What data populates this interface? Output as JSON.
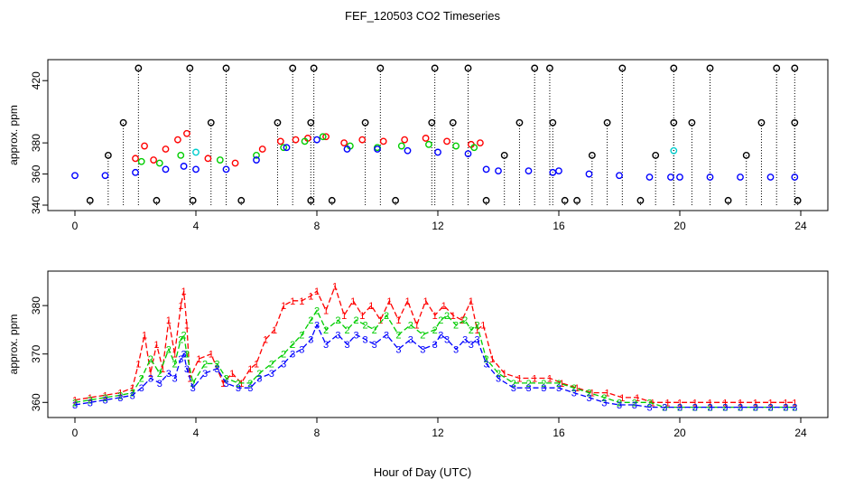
{
  "title": "FEF_120503  CO2 Timeseries",
  "xlabel": "Hour of Day (UTC)",
  "chart_data": [
    {
      "type": "scatter",
      "name": "top-panel",
      "ylabel": "approx. ppm",
      "xlim": [
        0,
        24
      ],
      "ylim": [
        340,
        430
      ],
      "xticks": [
        0,
        4,
        8,
        12,
        16,
        20,
        24
      ],
      "yticks": [
        340,
        360,
        380,
        420
      ],
      "series": [
        {
          "name": "black-spikes",
          "color": "#000000",
          "x": [
            0.5,
            1.1,
            1.6,
            2.1,
            2.7,
            3.8,
            3.9,
            4.5,
            5.0,
            5.5,
            6.7,
            7.2,
            7.8,
            7.8,
            7.9,
            8.5,
            9.6,
            10.1,
            10.6,
            11.8,
            11.9,
            12.5,
            13.0,
            13.6,
            14.2,
            14.7,
            15.2,
            15.7,
            15.8,
            16.2,
            16.6,
            17.1,
            17.6,
            18.1,
            18.7,
            19.2,
            19.8,
            19.8,
            20.4,
            21.0,
            21.6,
            22.2,
            22.7,
            23.2,
            23.8,
            23.8,
            23.9
          ],
          "y": [
            343,
            372,
            393,
            428,
            343,
            428,
            343,
            393,
            428,
            343,
            393,
            428,
            393,
            343,
            428,
            343,
            393,
            428,
            343,
            393,
            428,
            393,
            428,
            343,
            372,
            393,
            428,
            428,
            393,
            343,
            343,
            372,
            393,
            428,
            343,
            372,
            428,
            393,
            393,
            428,
            343,
            372,
            393,
            428,
            428,
            393,
            343
          ]
        },
        {
          "name": "red",
          "color": "#ff0000",
          "x": [
            2.0,
            2.3,
            2.6,
            3.0,
            3.4,
            3.7,
            4.4,
            5.3,
            6.2,
            6.8,
            7.3,
            7.7,
            8.3,
            8.9,
            9.5,
            10.2,
            10.9,
            11.6,
            12.3,
            13.1,
            13.4
          ],
          "y": [
            370,
            378,
            369,
            376,
            382,
            386,
            370,
            367,
            376,
            381,
            382,
            383,
            384,
            380,
            382,
            381,
            382,
            383,
            381,
            379,
            380
          ]
        },
        {
          "name": "green",
          "color": "#00cd00",
          "x": [
            2.2,
            2.8,
            3.5,
            4.8,
            6.0,
            6.9,
            7.6,
            8.2,
            9.1,
            10.0,
            10.8,
            11.7,
            12.6,
            13.2
          ],
          "y": [
            368,
            367,
            372,
            369,
            372,
            377,
            381,
            384,
            378,
            377,
            378,
            379,
            378,
            377
          ]
        },
        {
          "name": "cyan",
          "color": "#00cdcd",
          "x": [
            4.0,
            19.8
          ],
          "y": [
            374,
            375
          ]
        },
        {
          "name": "blue",
          "color": "#0000ff",
          "x": [
            0.0,
            1.0,
            2.0,
            3.0,
            3.6,
            4.0,
            5.0,
            6.0,
            7.0,
            8.0,
            9.0,
            10.0,
            11.0,
            12.0,
            13.0,
            13.6,
            14.0,
            15.0,
            15.8,
            16.0,
            17.0,
            18.0,
            19.0,
            19.7,
            20.0,
            21.0,
            22.0,
            23.0,
            23.8
          ],
          "y": [
            359,
            359,
            361,
            363,
            365,
            363,
            363,
            369,
            377,
            382,
            376,
            376,
            375,
            374,
            373,
            363,
            362,
            362,
            361,
            362,
            360,
            359,
            358,
            358,
            358,
            358,
            358,
            358,
            358
          ]
        }
      ]
    },
    {
      "type": "line",
      "name": "bottom-panel",
      "ylabel": "approx. ppm",
      "xlim": [
        0,
        24
      ],
      "ylim": [
        358,
        386
      ],
      "xticks": [
        0,
        4,
        8,
        12,
        16,
        20,
        24
      ],
      "xticklabels": [
        "0",
        "4",
        "8",
        "12",
        "16",
        "20",
        "24"
      ],
      "yticks": [
        360,
        370,
        380
      ],
      "series": [
        {
          "name": "1",
          "color": "#ff0000",
          "label": "1",
          "x": [
            0.0,
            0.5,
            1.0,
            1.5,
            1.9,
            2.1,
            2.3,
            2.5,
            2.7,
            2.9,
            3.1,
            3.3,
            3.5,
            3.6,
            3.7,
            3.8,
            4.1,
            4.5,
            4.9,
            5.2,
            5.5,
            5.8,
            6.0,
            6.3,
            6.6,
            6.9,
            7.2,
            7.5,
            7.8,
            8.0,
            8.3,
            8.6,
            8.9,
            9.2,
            9.5,
            9.8,
            10.1,
            10.4,
            10.7,
            11.0,
            11.3,
            11.6,
            11.9,
            12.2,
            12.5,
            12.8,
            13.1,
            13.3,
            13.5,
            13.8,
            14.2,
            14.7,
            15.2,
            15.7,
            16.1,
            16.6,
            17.1,
            17.6,
            18.1,
            18.6,
            19.1,
            19.6,
            20.0,
            20.5,
            21.0,
            21.5,
            22.0,
            22.5,
            23.0,
            23.5,
            23.8
          ],
          "y": [
            360.5,
            361,
            361.5,
            362,
            363,
            368,
            374,
            366,
            372,
            367,
            377,
            370,
            380,
            383,
            376,
            365,
            369,
            370,
            364,
            366,
            364,
            367,
            368,
            373,
            375,
            380,
            381,
            381,
            382,
            383,
            379,
            384,
            378,
            381,
            378,
            380,
            377,
            381,
            377,
            381,
            376,
            381,
            378,
            380,
            378,
            377,
            381,
            375,
            376,
            369,
            366,
            365,
            365,
            365,
            364,
            363,
            362,
            362,
            361,
            361,
            360,
            360,
            360,
            360,
            360,
            360,
            360,
            360,
            360,
            360,
            360
          ]
        },
        {
          "name": "2",
          "color": "#00cd00",
          "label": "2",
          "x": [
            0.0,
            0.5,
            1.0,
            1.5,
            1.9,
            2.2,
            2.5,
            2.8,
            3.1,
            3.3,
            3.5,
            3.6,
            3.7,
            3.9,
            4.3,
            4.7,
            5.0,
            5.4,
            5.8,
            6.1,
            6.5,
            6.9,
            7.2,
            7.5,
            7.8,
            8.0,
            8.3,
            8.7,
            9.0,
            9.3,
            9.6,
            9.9,
            10.3,
            10.7,
            11.1,
            11.5,
            11.9,
            12.1,
            12.3,
            12.6,
            12.9,
            13.1,
            13.3,
            13.6,
            14.0,
            14.5,
            15.0,
            15.5,
            16.0,
            16.5,
            17.0,
            17.5,
            18.0,
            18.5,
            19.0,
            19.5,
            20.0,
            20.5,
            21.0,
            21.5,
            22.0,
            22.5,
            23.0,
            23.5,
            23.8
          ],
          "y": [
            360,
            360.5,
            361,
            361.5,
            362,
            365,
            369,
            366,
            371,
            368,
            373,
            374,
            370,
            364,
            368,
            368,
            365,
            364,
            364,
            366,
            368,
            370,
            372,
            374,
            377,
            379,
            375,
            377,
            375,
            377,
            376,
            375,
            378,
            374,
            376,
            374,
            375,
            377,
            378,
            376,
            377,
            375,
            376,
            369,
            366,
            364,
            364,
            364,
            364,
            363,
            362,
            361,
            360,
            360,
            360,
            359,
            359,
            359,
            359,
            359,
            359,
            359,
            359,
            359,
            359
          ]
        },
        {
          "name": "3",
          "color": "#0000ff",
          "label": "3",
          "x": [
            0.0,
            0.5,
            1.0,
            1.5,
            1.9,
            2.2,
            2.5,
            2.8,
            3.1,
            3.3,
            3.5,
            3.6,
            3.7,
            3.9,
            4.3,
            4.7,
            5.0,
            5.4,
            5.8,
            6.1,
            6.5,
            6.9,
            7.2,
            7.5,
            7.8,
            8.0,
            8.3,
            8.7,
            9.0,
            9.3,
            9.6,
            9.9,
            10.3,
            10.7,
            11.1,
            11.5,
            11.9,
            12.1,
            12.3,
            12.6,
            12.9,
            13.1,
            13.3,
            13.6,
            14.0,
            14.5,
            15.0,
            15.5,
            16.0,
            16.5,
            17.0,
            17.5,
            18.0,
            18.5,
            19.0,
            19.5,
            20.0,
            20.5,
            21.0,
            21.5,
            22.0,
            22.5,
            23.0,
            23.5,
            23.8
          ],
          "y": [
            359.5,
            360,
            360.5,
            361,
            361.5,
            363,
            365,
            364,
            366,
            365,
            369,
            370,
            367,
            363,
            366,
            367,
            364,
            363,
            363,
            365,
            366,
            368,
            370,
            371,
            373,
            376,
            372,
            374,
            372,
            374,
            373,
            372,
            374,
            371,
            373,
            371,
            372,
            374,
            373,
            371,
            373,
            372,
            373,
            368,
            365,
            363,
            363,
            363,
            363,
            362,
            361,
            360,
            359.5,
            359.5,
            359,
            359,
            359,
            359,
            359,
            359,
            359,
            359,
            359,
            359,
            359
          ]
        }
      ]
    }
  ]
}
